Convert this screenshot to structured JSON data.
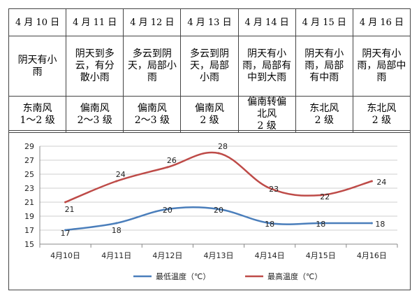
{
  "table": {
    "dates": [
      "4 月 10 日",
      "4 月 11 日",
      "4 月 12 日",
      "4 月 13 日",
      "4 月 14 日",
      "4 月 15 日",
      "4 月 16 日"
    ],
    "weather": [
      "阴天有小\n雨",
      "阴天到多\n云，有分\n散小雨",
      "多云到阴\n天，局部小\n雨",
      "多云到阴\n天，局部\n小雨",
      "阴天有小\n雨，局部有\n中到大雨",
      "阴天有小\n雨，局部\n有中雨",
      "阴天有小\n雨，局部中\n雨"
    ],
    "wind": [
      "东南风\n1～2 级",
      "偏南风\n2～3 级",
      "偏南风\n2～3 级",
      "偏南风\n2 级",
      "偏南转偏\n北风\n2 级",
      "东北风\n2 级",
      "东北风\n2 级"
    ]
  },
  "chart_data": {
    "type": "line",
    "categories": [
      "4月10日",
      "4月11日",
      "4月12日",
      "4月13日",
      "4月14日",
      "4月15日",
      "4月16日"
    ],
    "ylim": [
      15,
      29
    ],
    "yticks": [
      15,
      17,
      19,
      21,
      23,
      25,
      27,
      29
    ],
    "grid": true,
    "legend_position": "bottom",
    "series": [
      {
        "name": "最低温度（℃）",
        "values": [
          17,
          18,
          20,
          20,
          18,
          18,
          18
        ],
        "color": "#4a7ebb"
      },
      {
        "name": "最高温度（℃）",
        "values": [
          21,
          24,
          26,
          28,
          23,
          22,
          24
        ],
        "color": "#be4b48"
      }
    ]
  }
}
